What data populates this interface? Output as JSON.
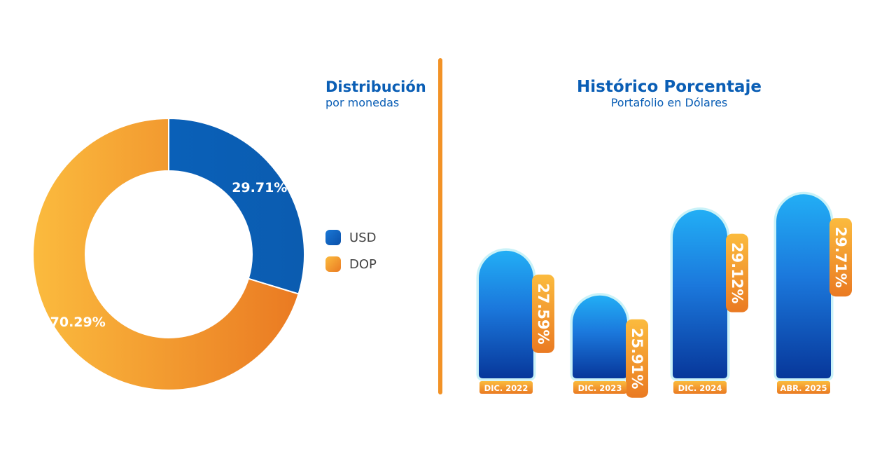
{
  "donut": {
    "title": "Distribución",
    "subtitle": "por monedas"
  },
  "history": {
    "title": "Histórico Porcentaje",
    "subtitle": "Portafolio en Dólares"
  },
  "legend": [
    {
      "label": "USD",
      "color": "#0a5eb5"
    },
    {
      "label": "DOP",
      "color": "#f29a2e"
    }
  ],
  "colors": {
    "usd": "#0a5eb5",
    "dop_light": "#fbbb3e",
    "dop_dark": "#ea7a22",
    "bar_top": "#22aef5",
    "bar_bottom": "#07379a",
    "divider": "#f29226",
    "title": "#0a5eb5"
  },
  "chart_data": [
    {
      "type": "pie",
      "style": "donut",
      "title": "Distribución",
      "subtitle": "por monedas",
      "slices": [
        {
          "label": "USD",
          "value": 29.71,
          "display": "29.71%"
        },
        {
          "label": "DOP",
          "value": 70.29,
          "display": "70.29%"
        }
      ],
      "legend": "right"
    },
    {
      "type": "bar",
      "title": "Histórico Porcentaje",
      "subtitle": "Portafolio en Dólares",
      "categories": [
        "DIC. 2022",
        "DIC. 2023",
        "DIC. 2024",
        "ABR. 2025"
      ],
      "values": [
        27.59,
        25.91,
        29.12,
        29.71
      ],
      "value_labels": [
        "27.59%",
        "25.91%",
        "29.12%",
        "29.71%"
      ],
      "ylim": [
        22.8,
        29.9
      ]
    }
  ]
}
